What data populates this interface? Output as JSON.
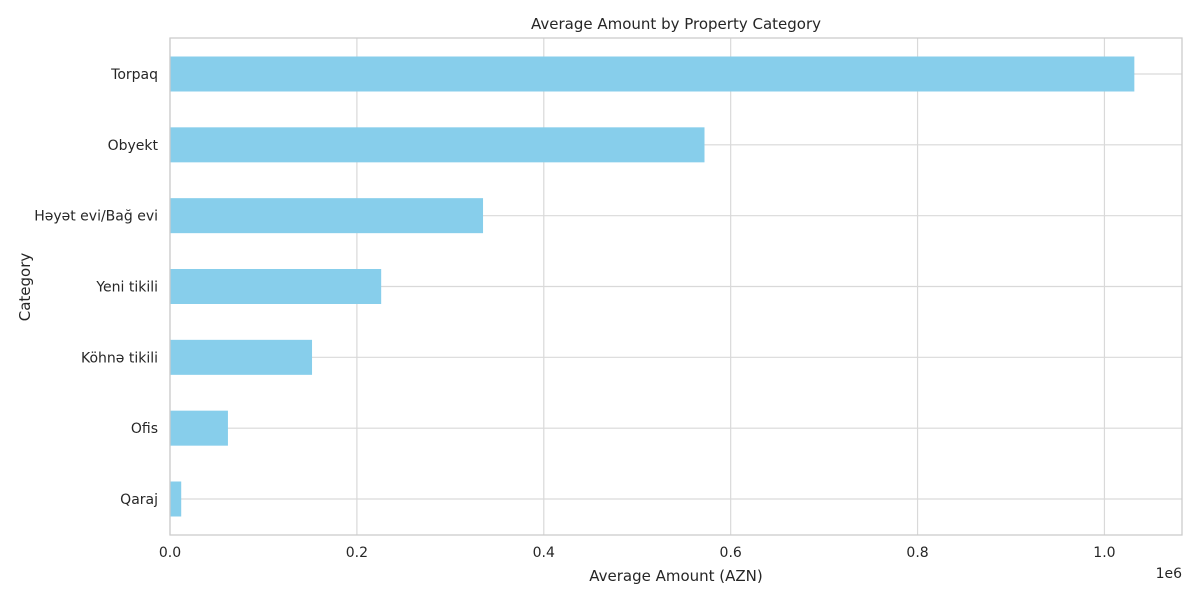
{
  "chart_data": {
    "type": "bar",
    "orientation": "horizontal",
    "title": "Average Amount by Property Category",
    "xlabel": "Average Amount (AZN)",
    "ylabel": "Category",
    "x_offset_label": "1e6",
    "xlim": [
      0,
      1.083
    ],
    "x_ticks": [
      0.0,
      0.2,
      0.4,
      0.6,
      0.8,
      1.0
    ],
    "x_tick_labels": [
      "0.0",
      "0.2",
      "0.4",
      "0.6",
      "0.8",
      "1.0"
    ],
    "categories": [
      "Torpaq",
      "Obyekt",
      "Həyət evi/Bağ evi",
      "Yeni tikili",
      "Köhnə tikili",
      "Ofis",
      "Qaraj"
    ],
    "values": [
      1.032,
      0.572,
      0.335,
      0.226,
      0.152,
      0.062,
      0.012
    ],
    "bar_color": "#87ceeb",
    "grid": true
  }
}
